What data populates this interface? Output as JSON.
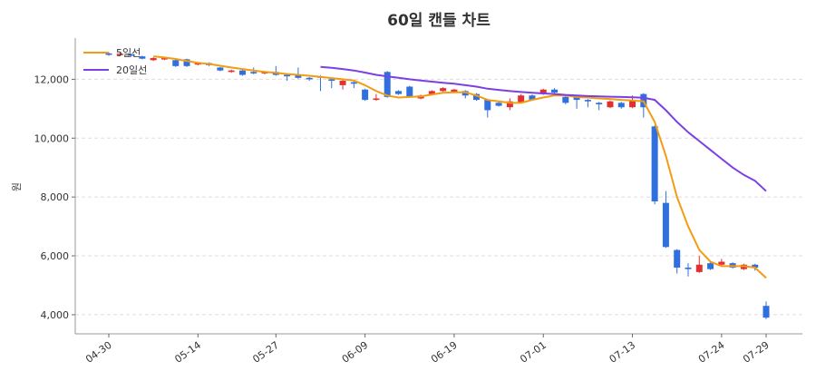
{
  "chart_data": {
    "type": "candlestick",
    "title": "60일 캔들 차트",
    "y_label": "원",
    "up_color": "#e03131",
    "down_color": "#2f6fde",
    "categories": [
      "04-30",
      null,
      null,
      null,
      null,
      null,
      null,
      null,
      "05-14",
      null,
      null,
      null,
      null,
      null,
      null,
      "05-27",
      null,
      null,
      null,
      null,
      null,
      null,
      null,
      "06-09",
      null,
      null,
      null,
      null,
      null,
      null,
      null,
      "06-19",
      null,
      null,
      null,
      null,
      null,
      null,
      null,
      "07-01",
      null,
      null,
      null,
      null,
      null,
      null,
      null,
      "07-13",
      null,
      null,
      null,
      null,
      null,
      null,
      null,
      "07-24",
      null,
      null,
      null,
      "07-29"
    ],
    "open": [
      12880,
      12820,
      12850,
      12780,
      12650,
      12680,
      12650,
      12680,
      12500,
      12550,
      12400,
      12250,
      12300,
      12250,
      12200,
      12250,
      12150,
      12150,
      12050,
      12100,
      12000,
      11800,
      11900,
      11650,
      11300,
      12250,
      11600,
      11750,
      11350,
      11500,
      11600,
      11550,
      11600,
      11500,
      11300,
      11200,
      11050,
      11200,
      11450,
      11500,
      11650,
      11400,
      11400,
      11300,
      11200,
      11050,
      11200,
      11050,
      11500,
      10400,
      7800,
      6200,
      5600,
      5450,
      5750,
      5700,
      5750,
      5550,
      5700,
      4300
    ],
    "high": [
      12920,
      12900,
      12880,
      12800,
      12750,
      12750,
      12700,
      12700,
      12580,
      12580,
      12420,
      12330,
      12320,
      12400,
      12280,
      12450,
      12180,
      12400,
      12080,
      12130,
      12030,
      11980,
      11930,
      11680,
      11500,
      12280,
      11630,
      11780,
      11480,
      11630,
      11730,
      11680,
      11630,
      11530,
      11330,
      11230,
      11350,
      11500,
      11480,
      11680,
      11700,
      11430,
      11430,
      11330,
      11230,
      11280,
      11230,
      11450,
      11530,
      10430,
      8200,
      6230,
      5750,
      6000,
      5780,
      5900,
      5780,
      5730,
      5730,
      4450
    ],
    "low": [
      12800,
      12790,
      12770,
      12680,
      12620,
      12650,
      12420,
      12420,
      12470,
      12450,
      12270,
      12220,
      12120,
      12170,
      12170,
      12120,
      11950,
      12020,
      11950,
      11600,
      11700,
      11650,
      11700,
      11270,
      11270,
      11370,
      11470,
      11370,
      11320,
      11470,
      11570,
      11520,
      11350,
      11270,
      10700,
      11070,
      10950,
      11170,
      11270,
      11470,
      11520,
      11150,
      11000,
      11050,
      10950,
      11020,
      11000,
      11020,
      10700,
      7750,
      6270,
      5400,
      5300,
      5420,
      5520,
      5670,
      5570,
      5520,
      5500,
      3850
    ],
    "close": [
      12830,
      12870,
      12800,
      12700,
      12720,
      12720,
      12450,
      12450,
      12550,
      12480,
      12300,
      12300,
      12150,
      12200,
      12250,
      12150,
      12100,
      12050,
      12000,
      12050,
      11950,
      11950,
      11850,
      11300,
      11350,
      11400,
      11500,
      11400,
      11450,
      11600,
      11700,
      11650,
      11450,
      11300,
      10950,
      11100,
      11250,
      11450,
      11300,
      11650,
      11550,
      11200,
      11300,
      11250,
      11150,
      11250,
      11050,
      11300,
      11050,
      7850,
      6300,
      5600,
      5550,
      5700,
      5550,
      5800,
      5600,
      5700,
      5600,
      3900
    ],
    "series": [
      {
        "name": "5일선",
        "color": "#f39c12",
        "values": [
          null,
          null,
          null,
          null,
          12780,
          12740,
          12690,
          12620,
          12560,
          12520,
          12460,
          12400,
          12350,
          12300,
          12250,
          12220,
          12180,
          12150,
          12120,
          12080,
          12040,
          12000,
          11960,
          11800,
          11600,
          11450,
          11380,
          11400,
          11420,
          11480,
          11540,
          11560,
          11560,
          11450,
          11300,
          11250,
          11200,
          11200,
          11300,
          11380,
          11450,
          11450,
          11400,
          11380,
          11350,
          11330,
          11300,
          11280,
          11250,
          10550,
          9400,
          8000,
          7000,
          6200,
          5800,
          5650,
          5650,
          5650,
          5600,
          5250
        ]
      },
      {
        "name": "20일선",
        "color": "#7b3fe4",
        "values": [
          null,
          null,
          null,
          null,
          null,
          null,
          null,
          null,
          null,
          null,
          null,
          null,
          null,
          null,
          null,
          null,
          null,
          null,
          null,
          12420,
          12390,
          12350,
          12300,
          12230,
          12150,
          12100,
          12050,
          12000,
          11960,
          11920,
          11880,
          11850,
          11800,
          11750,
          11680,
          11640,
          11600,
          11570,
          11540,
          11520,
          11500,
          11470,
          11450,
          11430,
          11420,
          11410,
          11400,
          11390,
          11370,
          11300,
          10950,
          10550,
          10200,
          9900,
          9600,
          9300,
          9000,
          8750,
          8550,
          8200
        ]
      }
    ],
    "ylim": [
      3350,
      13400
    ],
    "yticks": [
      {
        "value": 4000,
        "label": "4,000"
      },
      {
        "value": 6000,
        "label": "6,000"
      },
      {
        "value": 8000,
        "label": "8,000"
      },
      {
        "value": 10000,
        "label": "10,000"
      },
      {
        "value": 12000,
        "label": "12,000"
      }
    ],
    "grid": true,
    "legend": "top-left"
  }
}
